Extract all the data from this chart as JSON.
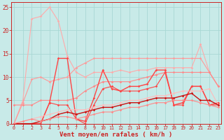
{
  "xlabel": "Vent moyen/en rafales ( km/h )",
  "background_color": "#c8eae8",
  "grid_color": "#a8d8d4",
  "x": [
    0,
    1,
    2,
    3,
    4,
    5,
    6,
    7,
    8,
    9,
    10,
    11,
    12,
    13,
    14,
    15,
    16,
    17,
    18,
    19,
    20,
    21,
    22,
    23
  ],
  "ylim": [
    0,
    26
  ],
  "xlim": [
    -0.3,
    23.3
  ],
  "series": [
    {
      "color": "#ffaaaa",
      "linewidth": 0.8,
      "y": [
        0,
        5,
        22.5,
        23,
        25,
        22,
        14.5,
        11,
        10,
        11,
        11,
        11,
        11.5,
        11,
        11.5,
        11.5,
        12,
        12,
        12,
        12,
        12,
        17,
        11,
        8
      ]
    },
    {
      "color": "#ff9999",
      "linewidth": 0.8,
      "y": [
        0,
        4.5,
        9.5,
        10,
        9,
        9.5,
        10,
        12,
        13,
        14,
        14,
        14,
        14,
        14,
        14,
        14,
        14,
        14,
        14,
        14,
        14,
        14,
        11,
        8
      ]
    },
    {
      "color": "#ff8888",
      "linewidth": 0.8,
      "y": [
        4,
        4,
        4,
        5,
        5,
        5,
        5,
        5.5,
        7,
        8,
        9,
        9,
        9,
        9,
        9.5,
        10,
        10.5,
        11,
        11,
        11,
        11,
        11,
        11,
        8
      ]
    },
    {
      "color": "#ff4444",
      "linewidth": 1.0,
      "y": [
        0,
        0,
        0,
        0,
        4.5,
        14,
        14,
        1,
        0.5,
        5.5,
        11.5,
        7.5,
        7,
        8,
        8,
        8.5,
        11.5,
        11.5,
        4,
        4.5,
        8,
        8,
        4,
        4.5
      ]
    },
    {
      "color": "#ff4444",
      "linewidth": 0.8,
      "y": [
        0,
        0,
        0,
        0,
        4.5,
        4,
        4,
        1,
        0,
        4,
        7.5,
        8,
        7,
        7,
        7,
        7.5,
        8,
        11,
        4,
        4,
        8,
        8,
        4,
        4
      ]
    },
    {
      "color": "#ffbbbb",
      "linewidth": 0.8,
      "y": [
        0,
        0.5,
        1,
        1.5,
        2,
        2.5,
        3,
        3,
        3,
        3.5,
        4,
        4,
        4.5,
        5,
        5,
        5.5,
        6,
        6,
        6.5,
        7,
        7,
        7,
        7.5,
        4
      ]
    },
    {
      "color": "#cc1111",
      "linewidth": 1.0,
      "y": [
        0,
        0,
        0,
        0.5,
        1,
        2,
        2.5,
        2,
        2.5,
        3,
        3.5,
        3.5,
        4,
        4.5,
        4.5,
        5,
        5.5,
        5.5,
        5.5,
        6,
        6.5,
        5,
        5,
        4
      ]
    },
    {
      "color": "#ff8888",
      "linewidth": 0.8,
      "y": [
        0,
        0.5,
        1,
        0.5,
        1,
        1.5,
        1.5,
        1,
        1.5,
        2,
        2.5,
        2.5,
        3,
        3.5,
        3.5,
        4,
        4.5,
        4.5,
        5,
        5,
        5,
        4.5,
        4,
        3.5
      ]
    }
  ],
  "yticks": [
    0,
    5,
    10,
    15,
    20,
    25
  ],
  "xticks": [
    0,
    1,
    2,
    3,
    4,
    5,
    6,
    7,
    8,
    9,
    10,
    11,
    12,
    13,
    14,
    15,
    16,
    17,
    18,
    19,
    20,
    21,
    22,
    23
  ],
  "tick_color": "#cc2222",
  "spine_color": "#cc2222",
  "xlabel_color": "#cc2222",
  "xlabel_fontsize": 6.5,
  "ytick_fontsize": 5.5,
  "xtick_fontsize": 4.8,
  "marker": "D",
  "markersize": 1.8
}
